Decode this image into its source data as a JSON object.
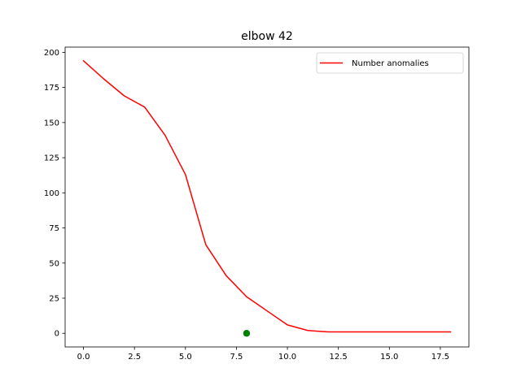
{
  "chart_data": {
    "type": "line",
    "title": "elbow 42",
    "xlabel": "",
    "ylabel": "",
    "xlim": [
      -0.9,
      18.9
    ],
    "ylim": [
      -9.7,
      203.7
    ],
    "xticks": [
      0.0,
      2.5,
      5.0,
      7.5,
      10.0,
      12.5,
      15.0,
      17.5
    ],
    "xtick_labels": [
      "0.0",
      "2.5",
      "5.0",
      "7.5",
      "10.0",
      "12.5",
      "15.0",
      "17.5"
    ],
    "yticks": [
      0,
      25,
      50,
      75,
      100,
      125,
      150,
      175,
      200
    ],
    "ytick_labels": [
      "0",
      "25",
      "50",
      "75",
      "100",
      "125",
      "150",
      "175",
      "200"
    ],
    "grid": false,
    "legend": {
      "position": "top-right",
      "entries": [
        "Number anomalies"
      ]
    },
    "series": [
      {
        "name": "Number anomalies",
        "color": "#ff0000",
        "x": [
          0,
          1,
          2,
          3,
          4,
          5,
          6,
          7,
          8,
          9,
          10,
          11,
          12,
          13,
          14,
          15,
          16,
          17,
          18
        ],
        "y": [
          194,
          181,
          169,
          161,
          141,
          113,
          63,
          41,
          26,
          16,
          6,
          2,
          1,
          1,
          1,
          1,
          1,
          1,
          1
        ]
      }
    ],
    "marker": {
      "x": 8,
      "y": 0,
      "color": "#008000"
    }
  }
}
